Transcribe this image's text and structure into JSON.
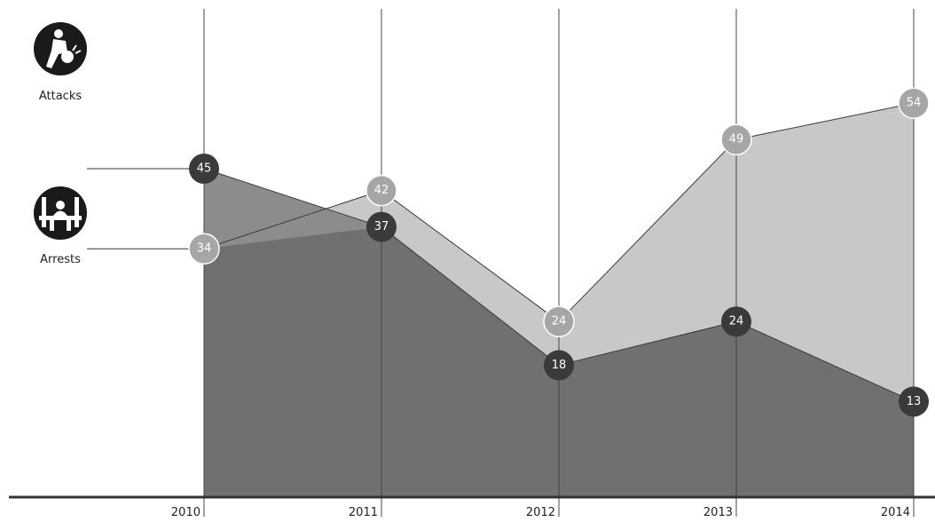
{
  "chart_data": {
    "type": "area",
    "categories": [
      "2010",
      "2011",
      "2012",
      "2013",
      "2014"
    ],
    "series": [
      {
        "name": "Attacks",
        "values": [
          45,
          37,
          18,
          24,
          13
        ],
        "fill": "#8c8c8c",
        "marker": "#3a3a3a",
        "label_color": "#ffffff"
      },
      {
        "name": "Arrests",
        "values": [
          34,
          42,
          24,
          49,
          54
        ],
        "fill": "#c8c8c8",
        "marker": "#a6a6a6",
        "label_color": "#ffffff"
      }
    ],
    "front_fill": "#707070",
    "legend": {
      "position": "left",
      "items": [
        {
          "label": "Attacks",
          "icon": "bomber-icon"
        },
        {
          "label": "Arrests",
          "icon": "prisoner-icon"
        }
      ]
    },
    "ylim": [
      0,
      60
    ],
    "grid": "vertical",
    "title": "",
    "xlabel": "",
    "ylabel": ""
  }
}
